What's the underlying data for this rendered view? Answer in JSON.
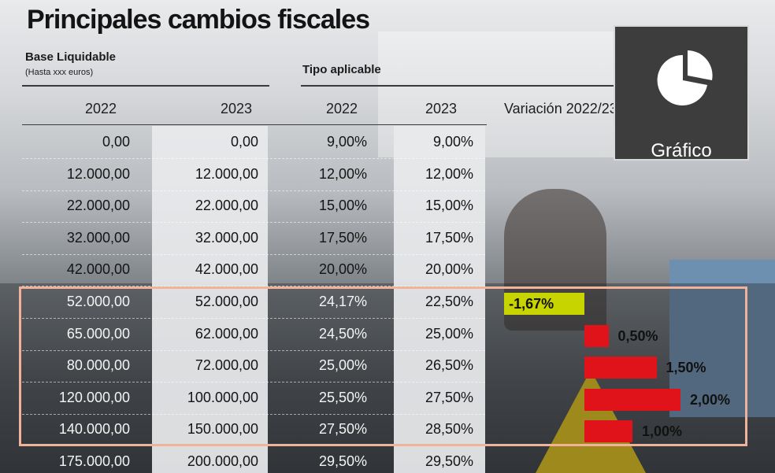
{
  "title": "Principales cambios fiscales",
  "header": {
    "base_liquidable": "Base Liquidable",
    "base_sub": "(Hasta xxx euros)",
    "tipo_aplicable": "Tipo aplicable",
    "col_2022_a": "2022",
    "col_2023_a": "2023",
    "col_2022_b": "2022",
    "col_2023_b": "2023",
    "variacion": "Variación 2022/23"
  },
  "badge": {
    "label": "Gráfico",
    "icon": "pie-chart-icon"
  },
  "colors": {
    "negative": "#c8d400",
    "positive": "#e0131a",
    "highlight_border": "#f2b29a"
  },
  "chart_data": {
    "type": "table",
    "columns": [
      "Base Liquidable 2022",
      "Base Liquidable 2023",
      "Tipo aplicable 2022",
      "Tipo aplicable 2023",
      "Variación 2022/23"
    ],
    "rows": [
      [
        "0,00",
        "0,00",
        "9,00%",
        "9,00%",
        ""
      ],
      [
        "12.000,00",
        "12.000,00",
        "12,00%",
        "12,00%",
        ""
      ],
      [
        "22.000,00",
        "22.000,00",
        "15,00%",
        "15,00%",
        ""
      ],
      [
        "32.000,00",
        "32.000,00",
        "17,50%",
        "17,50%",
        ""
      ],
      [
        "42.000,00",
        "42.000,00",
        "20,00%",
        "20,00%",
        ""
      ],
      [
        "52.000,00",
        "52.000,00",
        "24,17%",
        "22,50%",
        "-1,67%"
      ],
      [
        "65.000,00",
        "62.000,00",
        "24,50%",
        "25,00%",
        "0,50%"
      ],
      [
        "80.000,00",
        "72.000,00",
        "25,00%",
        "26,50%",
        "1,50%"
      ],
      [
        "120.000,00",
        "100.000,00",
        "25,50%",
        "27,50%",
        "2,00%"
      ],
      [
        "140.000,00",
        "150.000,00",
        "27,50%",
        "28,50%",
        "1,00%"
      ],
      [
        "175.000,00",
        "200.000,00",
        "29,50%",
        "29,50%",
        ""
      ]
    ],
    "variation_values": [
      null,
      null,
      null,
      null,
      null,
      -1.67,
      0.5,
      1.5,
      2.0,
      1.0,
      null
    ],
    "highlighted_rows": [
      5,
      6,
      7,
      8,
      9
    ]
  }
}
